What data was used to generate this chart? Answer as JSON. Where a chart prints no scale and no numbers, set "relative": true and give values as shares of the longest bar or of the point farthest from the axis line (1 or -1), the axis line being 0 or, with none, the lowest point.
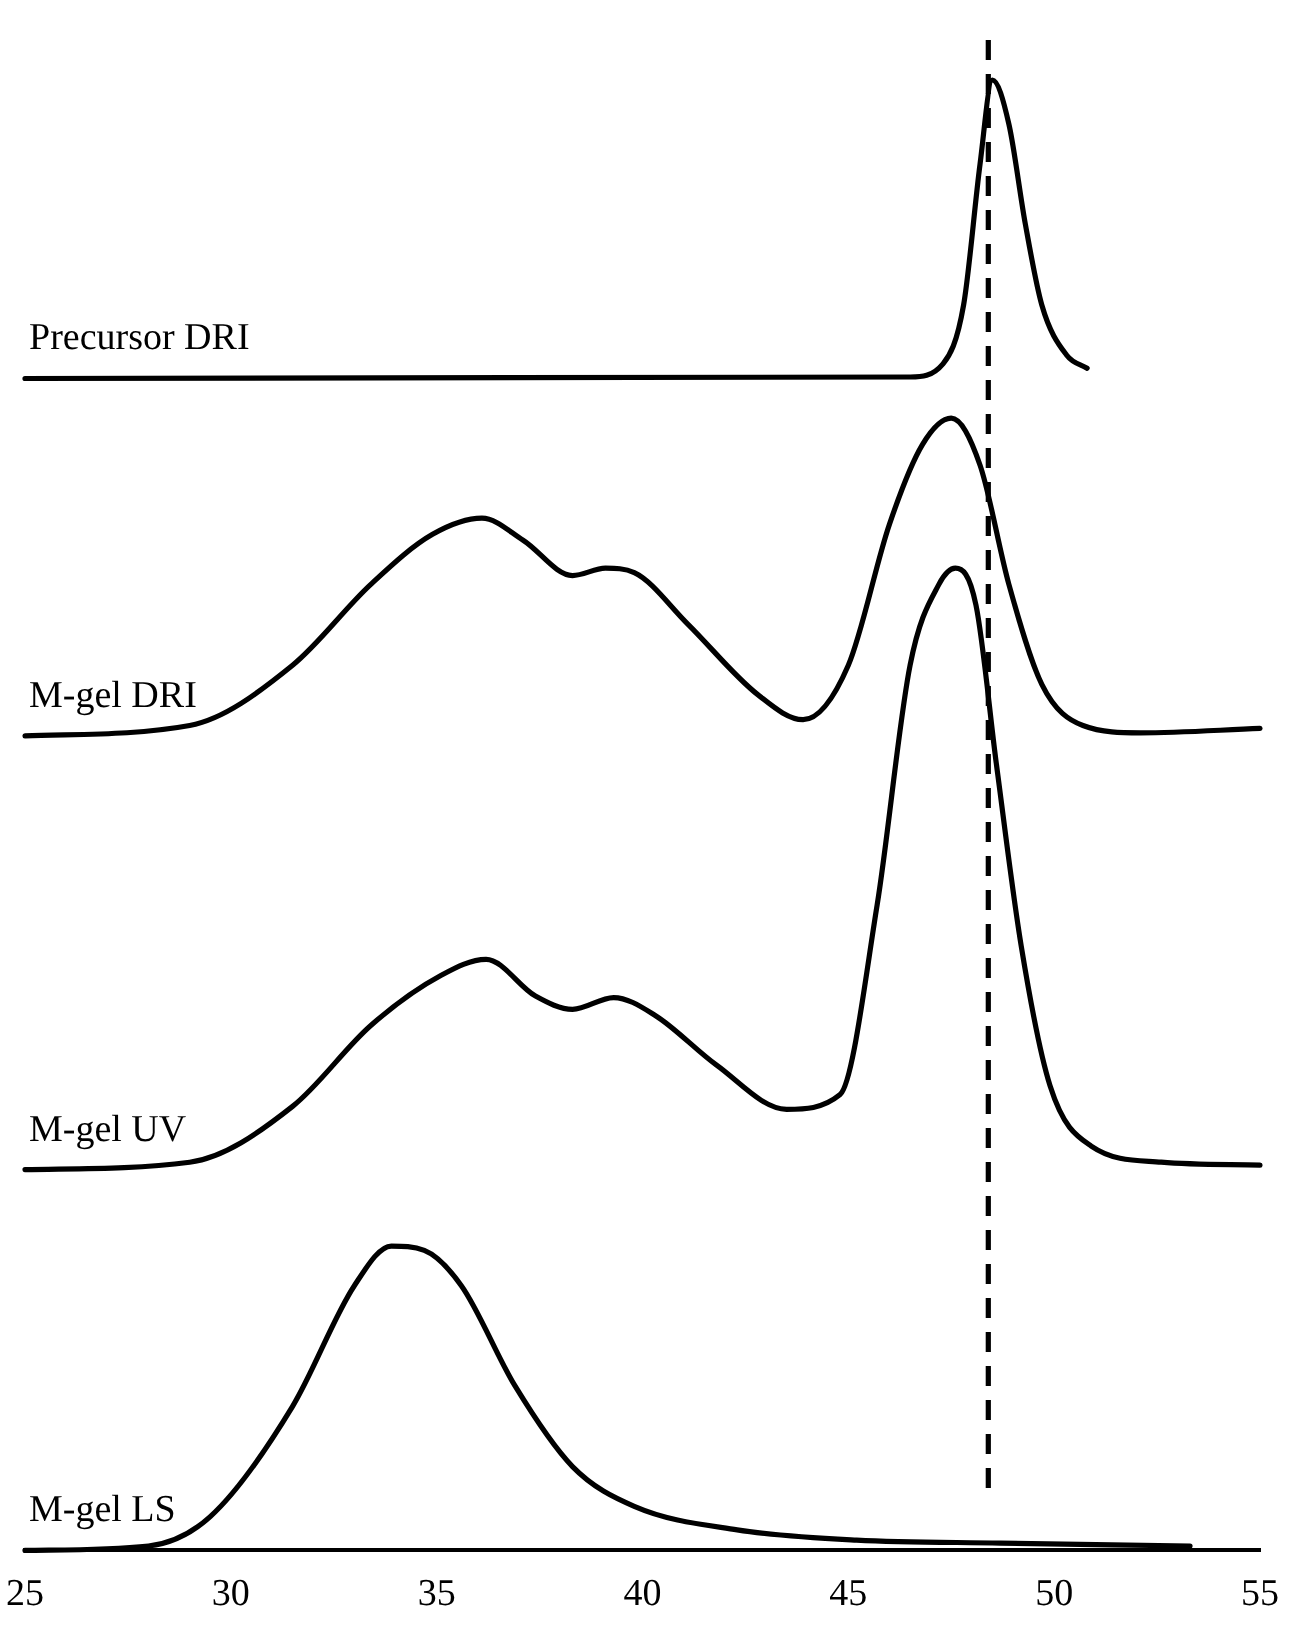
{
  "chart_data": {
    "type": "line",
    "relative": true,
    "xlim": [
      25,
      55
    ],
    "xticks": [
      25,
      30,
      35,
      40,
      45,
      50,
      55
    ],
    "grid": false,
    "legend": false,
    "marker": "none",
    "line_style": "solid",
    "series": [
      {
        "name": "Precursor DRI",
        "color": "#000000",
        "x": [
          25,
          46.5,
          47.3,
          47.8,
          48.2,
          48.5,
          48.9,
          49.3,
          49.7,
          50.3,
          50.8
        ],
        "values": [
          0.797,
          0.798,
          0.807,
          0.847,
          0.943,
          1.0,
          0.97,
          0.902,
          0.847,
          0.813,
          0.804
        ]
      },
      {
        "name": "M-gel DRI",
        "color": "#000000",
        "x": [
          25,
          29,
          31.5,
          33.4,
          34.9,
          36.1,
          37.1,
          38.3,
          39.1,
          39.8,
          41.1,
          42.8,
          43.9,
          45,
          46,
          46.8,
          47.5,
          48.2,
          48.9,
          49.7,
          50.7,
          52.1,
          55
        ],
        "values": [
          0.554,
          0.561,
          0.602,
          0.657,
          0.691,
          0.702,
          0.687,
          0.663,
          0.668,
          0.665,
          0.63,
          0.582,
          0.565,
          0.602,
          0.698,
          0.752,
          0.77,
          0.738,
          0.657,
          0.589,
          0.561,
          0.556,
          0.559
        ]
      },
      {
        "name": "M-gel UV",
        "color": "#000000",
        "x": [
          25,
          29,
          31.5,
          33.4,
          35.1,
          36.2,
          37.4,
          38.3,
          39.3,
          40.3,
          41.8,
          43.5,
          44.8,
          45.7,
          46.5,
          47.2,
          47.6,
          48.1,
          48.6,
          49.2,
          49.9,
          50.9,
          52.6,
          55
        ],
        "values": [
          0.259,
          0.264,
          0.302,
          0.357,
          0.391,
          0.402,
          0.377,
          0.368,
          0.376,
          0.364,
          0.33,
          0.3,
          0.31,
          0.439,
          0.602,
          0.657,
          0.668,
          0.643,
          0.534,
          0.411,
          0.316,
          0.275,
          0.264,
          0.262
        ]
      },
      {
        "name": "M-gel LS",
        "color": "#000000",
        "x": [
          25,
          28,
          29.5,
          31.5,
          33,
          33.9,
          34.7,
          35.6,
          36.9,
          38.3,
          39.8,
          42.3,
          45.2,
          48.7,
          53.3
        ],
        "values": [
          0,
          0.003,
          0.023,
          0.098,
          0.18,
          0.207,
          0.204,
          0.18,
          0.112,
          0.057,
          0.03,
          0.014,
          0.007,
          0.005,
          0.003
        ]
      }
    ],
    "ref_lines": [
      {
        "axis": "x",
        "value": 48.4,
        "color": "#000000",
        "line_style": "dashed"
      }
    ]
  }
}
